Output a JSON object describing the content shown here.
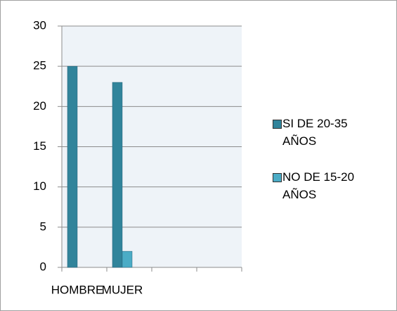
{
  "chart_data": {
    "type": "bar",
    "categories": [
      "HOMBRE",
      "MUJER",
      null,
      null
    ],
    "series": [
      {
        "name": "SI DE 20-35 AÑOS",
        "color": "#31849b",
        "values": [
          25,
          23,
          null,
          null
        ]
      },
      {
        "name": "NO DE 15-20 AÑOS",
        "color": "#4bacc6",
        "values": [
          null,
          2,
          null,
          null
        ]
      }
    ],
    "ylim": [
      0,
      30
    ],
    "yticks": [
      0,
      5,
      10,
      15,
      20,
      25,
      30
    ],
    "grid": true,
    "legend": "right"
  }
}
